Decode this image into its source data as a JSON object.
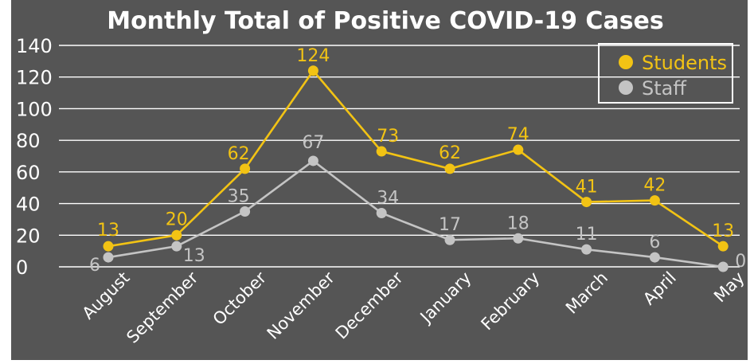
{
  "chart_data": {
    "type": "line",
    "title": "Monthly Total of Positive COVID-19 Cases",
    "xlabel": "",
    "ylabel": "",
    "ylim": [
      0,
      140
    ],
    "yticks": [
      "0",
      "20",
      "40",
      "60",
      "80",
      "100",
      "120",
      "140"
    ],
    "grid": true,
    "legend_position": "top-right",
    "categories": [
      "August",
      "September",
      "October",
      "November",
      "December",
      "January",
      "February",
      "March",
      "April",
      "May"
    ],
    "series": [
      {
        "name": "Students",
        "color": "#f2c314",
        "values": [
          13,
          20,
          62,
          124,
          73,
          62,
          74,
          41,
          42,
          13
        ]
      },
      {
        "name": "Staff",
        "color": "#c4c4c4",
        "values": [
          6,
          13,
          35,
          67,
          34,
          17,
          18,
          11,
          6,
          0
        ]
      }
    ]
  }
}
